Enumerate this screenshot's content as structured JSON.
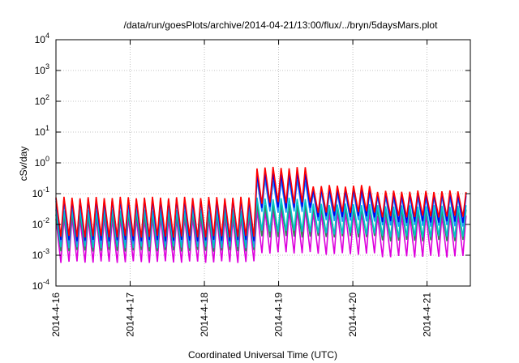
{
  "chart_data": {
    "type": "line",
    "title": "/data/run/goesPlots/archive/2014-04-21/13:00/flux/../bryn/5daysMars.plot",
    "xlabel": "Coordinated Universal Time (UTC)",
    "ylabel": "cSv/day",
    "yscale": "log",
    "ylim": [
      0.0001,
      10000
    ],
    "xlim": [
      "2014-04-16T00:00",
      "2014-04-21T14:00"
    ],
    "grid": true,
    "legend": "none",
    "x_ticks": [
      {
        "label": "2014-4-16",
        "value": "2014-04-16"
      },
      {
        "label": "2014-4-17",
        "value": "2014-04-17"
      },
      {
        "label": "2014-4-18",
        "value": "2014-04-18"
      },
      {
        "label": "2014-4-19",
        "value": "2014-04-19"
      },
      {
        "label": "2014-4-20",
        "value": "2014-04-20"
      },
      {
        "label": "2014-4-21",
        "value": "2014-04-21"
      }
    ],
    "y_ticks": [
      {
        "base": "10",
        "exp": "-4",
        "value": 0.0001
      },
      {
        "base": "10",
        "exp": "-3",
        "value": 0.001
      },
      {
        "base": "10",
        "exp": "-2",
        "value": 0.01
      },
      {
        "base": "10",
        "exp": "-1",
        "value": 0.1
      },
      {
        "base": "10",
        "exp": "0",
        "value": 1
      },
      {
        "base": "10",
        "exp": "1",
        "value": 10
      },
      {
        "base": "10",
        "exp": "2",
        "value": 100
      },
      {
        "base": "10",
        "exp": "3",
        "value": 1000
      },
      {
        "base": "10",
        "exp": "4",
        "value": 10000
      }
    ],
    "sawtooth_period_hours": 2.6,
    "series": [
      {
        "color": "#ff0000",
        "phases": [
          {
            "from": "2014-04-16T00:00",
            "to": "2014-04-18T15:00",
            "peak": 0.075,
            "trough": 0.004
          },
          {
            "from": "2014-04-18T15:00",
            "to": "2014-04-19T10:00",
            "peak": 0.7,
            "trough": 0.05
          },
          {
            "from": "2014-04-19T10:00",
            "to": "2014-04-20T06:00",
            "peak": 0.18,
            "trough": 0.025
          },
          {
            "from": "2014-04-20T06:00",
            "to": "2014-04-21T14:00",
            "peak": 0.12,
            "trough": 0.018
          }
        ]
      },
      {
        "color": "#0000ee",
        "phases": [
          {
            "from": "2014-04-16T00:00",
            "to": "2014-04-18T15:00",
            "peak": 0.065,
            "trough": 0.003
          },
          {
            "from": "2014-04-18T15:00",
            "to": "2014-04-19T10:00",
            "peak": 0.45,
            "trough": 0.035
          },
          {
            "from": "2014-04-19T10:00",
            "to": "2014-04-20T06:00",
            "peak": 0.14,
            "trough": 0.018
          },
          {
            "from": "2014-04-20T06:00",
            "to": "2014-04-21T14:00",
            "peak": 0.1,
            "trough": 0.012
          }
        ]
      },
      {
        "color": "#1e90ff",
        "phases": [
          {
            "from": "2014-04-16T00:00",
            "to": "2014-04-18T15:00",
            "peak": 0.055,
            "trough": 0.0025
          },
          {
            "from": "2014-04-18T15:00",
            "to": "2014-04-19T10:00",
            "peak": 0.28,
            "trough": 0.025
          },
          {
            "from": "2014-04-19T10:00",
            "to": "2014-04-20T06:00",
            "peak": 0.11,
            "trough": 0.013
          },
          {
            "from": "2014-04-20T06:00",
            "to": "2014-04-21T14:00",
            "peak": 0.08,
            "trough": 0.009
          }
        ]
      },
      {
        "color": "#00c8c8",
        "phases": [
          {
            "from": "2014-04-16T00:00",
            "to": "2014-04-18T15:00",
            "peak": 0.03,
            "trough": 0.0018
          },
          {
            "from": "2014-04-18T15:00",
            "to": "2014-04-19T10:00",
            "peak": 0.07,
            "trough": 0.006
          },
          {
            "from": "2014-04-19T10:00",
            "to": "2014-04-20T06:00",
            "peak": 0.045,
            "trough": 0.005
          },
          {
            "from": "2014-04-20T06:00",
            "to": "2014-04-21T14:00",
            "peak": 0.04,
            "trough": 0.004
          }
        ]
      },
      {
        "color": "#2e8b57",
        "phases": [
          {
            "from": "2014-04-16T00:00",
            "to": "2014-04-18T15:00",
            "peak": 0.022,
            "trough": 0.0014
          },
          {
            "from": "2014-04-18T15:00",
            "to": "2014-04-19T10:00",
            "peak": 0.045,
            "trough": 0.004
          },
          {
            "from": "2014-04-19T10:00",
            "to": "2014-04-20T06:00",
            "peak": 0.035,
            "trough": 0.004
          },
          {
            "from": "2014-04-20T06:00",
            "to": "2014-04-21T14:00",
            "peak": 0.03,
            "trough": 0.003
          }
        ]
      },
      {
        "color": "#dd00dd",
        "phases": [
          {
            "from": "2014-04-16T00:00",
            "to": "2014-04-18T15:00",
            "peak": 0.016,
            "trough": 0.0006
          },
          {
            "from": "2014-04-18T15:00",
            "to": "2014-04-19T10:00",
            "peak": 0.03,
            "trough": 0.0012
          },
          {
            "from": "2014-04-19T10:00",
            "to": "2014-04-20T06:00",
            "peak": 0.025,
            "trough": 0.0011
          },
          {
            "from": "2014-04-20T06:00",
            "to": "2014-04-21T14:00",
            "peak": 0.02,
            "trough": 0.0009
          }
        ]
      }
    ]
  }
}
